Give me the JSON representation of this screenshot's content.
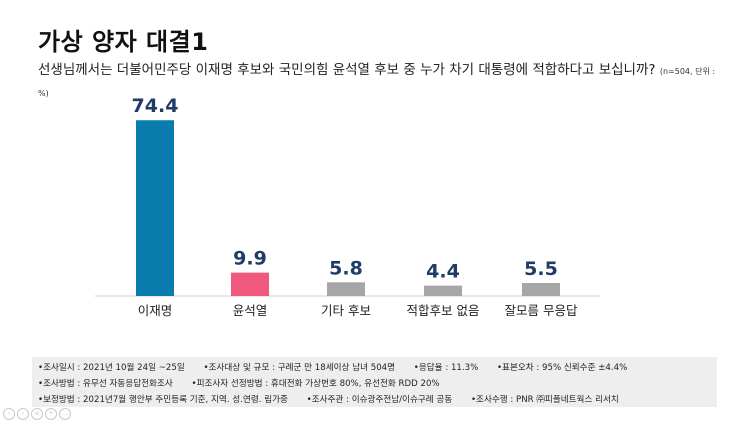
{
  "title": "가상 양자 대결1",
  "question": {
    "text": "선생님께서는 더불어민주당 이재명 후보와 국민의힘 윤석열 후보 중 누가 차기 대통령에 적합하다고 보십니까?",
    "note": "(n=504, 단위 : %)"
  },
  "chart_data": {
    "type": "bar",
    "categories": [
      "이재명",
      "윤석열",
      "기타 후보",
      "적합후보 없음",
      "잘모름 무응답"
    ],
    "values": [
      74.4,
      9.9,
      5.8,
      4.4,
      5.5
    ],
    "value_labels": [
      "74.4",
      "9.9",
      "5.8",
      "4.4",
      "5.5"
    ],
    "colors": [
      "#0a7bad",
      "#f0587e",
      "#a6a6a6",
      "#a6a6a6",
      "#a6a6a6"
    ],
    "label_color": "#1f3b66",
    "ylim": [
      0,
      80
    ],
    "grid": false,
    "legend": "none"
  },
  "footer": {
    "rows": [
      [
        "•조사일시 : 2021년 10월 24일 ~25일",
        "•조사대상 및 규모 : 구례군 만 18세이상  남녀  504명",
        "•응답율 :  11.3%",
        "•표본오차 : 95% 신뢰수준 ±4.4%"
      ],
      [
        "•조사방법 : 유무선 자동응답전화조사",
        "•피조사자 선정방법 : 휴대전화 가상번호 80%, 유선전화 RDD  20%"
      ],
      [
        "•보정방법 : 2021년7월  행안부 주민등록 기준,  지역. 성.연령. 림가중",
        "•조사주관 : 이슈광주전남/이슈구례 공동",
        "•조사수행 : PNR ㈜피플네트웍스 리서치"
      ]
    ]
  },
  "nav": {
    "icons": [
      "prev-icon",
      "next-icon",
      "menu-icon",
      "zoom-icon",
      "more-icon"
    ]
  }
}
